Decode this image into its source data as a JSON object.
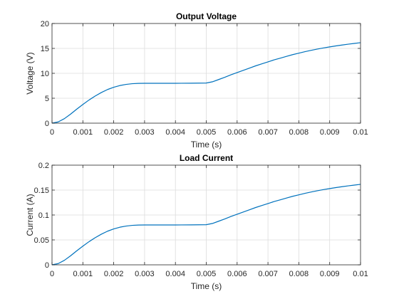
{
  "chart_data": [
    {
      "type": "line",
      "title": "Output Voltage",
      "xlabel": "Time (s)",
      "ylabel": "Voltage (V)",
      "xlim": [
        0,
        0.01
      ],
      "ylim": [
        0,
        20
      ],
      "xticks": [
        0,
        0.001,
        0.002,
        0.003,
        0.004,
        0.005,
        0.006,
        0.007,
        0.008,
        0.009,
        0.01
      ],
      "xtick_labels": [
        "0",
        "0.001",
        "0.002",
        "0.003",
        "0.004",
        "0.005",
        "0.006",
        "0.007",
        "0.008",
        "0.009",
        "0.01"
      ],
      "yticks": [
        0,
        5,
        10,
        15,
        20
      ],
      "ytick_labels": [
        "0",
        "5",
        "10",
        "15",
        "20"
      ],
      "grid": true,
      "color": "#0072BD",
      "series": [
        {
          "x": [
            0,
            0.0002,
            0.0004,
            0.0006,
            0.0008,
            0.001,
            0.0012,
            0.0014,
            0.0016,
            0.0018,
            0.002,
            0.0022,
            0.0024,
            0.0026,
            0.0028,
            0.003,
            0.0035,
            0.004,
            0.0045,
            0.005,
            0.0052,
            0.0054,
            0.0056,
            0.0058,
            0.006,
            0.0062,
            0.0064,
            0.0066,
            0.0068,
            0.007,
            0.0072,
            0.0074,
            0.0076,
            0.0078,
            0.008,
            0.0082,
            0.0084,
            0.0086,
            0.0088,
            0.009,
            0.0092,
            0.0094,
            0.0096,
            0.0098,
            0.01
          ],
          "y": [
            0,
            0.25,
            0.9,
            1.8,
            2.8,
            3.75,
            4.65,
            5.45,
            6.15,
            6.75,
            7.2,
            7.55,
            7.78,
            7.92,
            7.98,
            8.0,
            8.0,
            8.0,
            8.02,
            8.05,
            8.3,
            8.75,
            9.2,
            9.7,
            10.15,
            10.6,
            11.05,
            11.5,
            11.9,
            12.3,
            12.7,
            13.05,
            13.4,
            13.75,
            14.05,
            14.35,
            14.62,
            14.87,
            15.1,
            15.3,
            15.5,
            15.68,
            15.85,
            16.0,
            16.15
          ]
        }
      ]
    },
    {
      "type": "line",
      "title": "Load Current",
      "xlabel": "Time (s)",
      "ylabel": "Current (A)",
      "xlim": [
        0,
        0.01
      ],
      "ylim": [
        0,
        0.2
      ],
      "xticks": [
        0,
        0.001,
        0.002,
        0.003,
        0.004,
        0.005,
        0.006,
        0.007,
        0.008,
        0.009,
        0.01
      ],
      "xtick_labels": [
        "0",
        "0.001",
        "0.002",
        "0.003",
        "0.004",
        "0.005",
        "0.006",
        "0.007",
        "0.008",
        "0.009",
        "0.01"
      ],
      "yticks": [
        0,
        0.05,
        0.1,
        0.15,
        0.2
      ],
      "ytick_labels": [
        "0",
        "0.05",
        "0.1",
        "0.15",
        "0.2"
      ],
      "grid": true,
      "color": "#0072BD",
      "series": [
        {
          "x": [
            0,
            0.0002,
            0.0004,
            0.0006,
            0.0008,
            0.001,
            0.0012,
            0.0014,
            0.0016,
            0.0018,
            0.002,
            0.0022,
            0.0024,
            0.0026,
            0.0028,
            0.003,
            0.0035,
            0.004,
            0.0045,
            0.005,
            0.0052,
            0.0054,
            0.0056,
            0.0058,
            0.006,
            0.0062,
            0.0064,
            0.0066,
            0.0068,
            0.007,
            0.0072,
            0.0074,
            0.0076,
            0.0078,
            0.008,
            0.0082,
            0.0084,
            0.0086,
            0.0088,
            0.009,
            0.0092,
            0.0094,
            0.0096,
            0.0098,
            0.01
          ],
          "y": [
            0,
            0.0025,
            0.009,
            0.018,
            0.028,
            0.0375,
            0.0465,
            0.0545,
            0.0615,
            0.0675,
            0.072,
            0.0755,
            0.0778,
            0.0792,
            0.0798,
            0.08,
            0.08,
            0.08,
            0.0802,
            0.0805,
            0.083,
            0.0875,
            0.092,
            0.097,
            0.1015,
            0.106,
            0.1105,
            0.115,
            0.119,
            0.123,
            0.127,
            0.1305,
            0.134,
            0.1375,
            0.1405,
            0.1435,
            0.1462,
            0.1487,
            0.151,
            0.153,
            0.155,
            0.1568,
            0.1585,
            0.16,
            0.1615
          ]
        }
      ]
    }
  ]
}
